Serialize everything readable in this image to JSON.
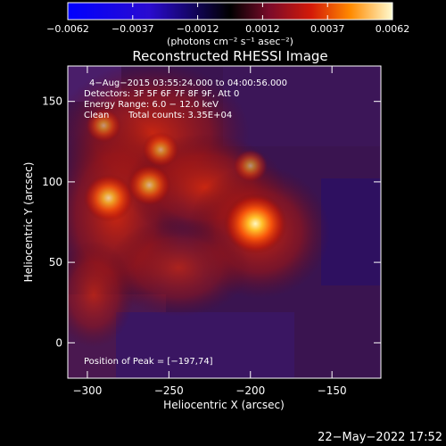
{
  "chart_data": {
    "type": "heatmap",
    "title": "Reconstructed RHESSI Image",
    "xlabel": "Heliocentric X (arcsec)",
    "ylabel": "Heliocentric Y (arcsec)",
    "xlim": [
      -312,
      -120
    ],
    "ylim": [
      -22,
      172
    ],
    "x_ticks": [
      {
        "value": -300,
        "label": "−300"
      },
      {
        "value": -250,
        "label": "−250"
      },
      {
        "value": -200,
        "label": "−200"
      },
      {
        "value": -150,
        "label": "−150"
      }
    ],
    "y_ticks": [
      {
        "value": 0,
        "label": "0"
      },
      {
        "value": 50,
        "label": "50"
      },
      {
        "value": 100,
        "label": "100"
      },
      {
        "value": 150,
        "label": "150"
      }
    ],
    "annotations": [
      "4−Aug−2015 03:55:24.000 to 04:00:56.000",
      "Detectors: 3F 5F 6F 7F 8F 9F, Att 0",
      "Energy Range: 6.0 − 12.0 keV",
      "Clean",
      "Total counts: 3.35E+04",
      "Position of Peak = [−197,74]"
    ],
    "colorbar": {
      "range": [
        -0.0062,
        0.0062
      ],
      "tick_labels": [
        "−0.0062",
        "−0.0037",
        "−0.0012",
        "0.0012",
        "0.0037",
        "0.0062"
      ],
      "unit_label": "(photons cm⁻² s⁻¹ asec⁻²)"
    },
    "sources": [
      {
        "x": -197,
        "y": 74,
        "value": 0.0062
      },
      {
        "x": -287,
        "y": 90,
        "value": 0.0042
      },
      {
        "x": -262,
        "y": 98,
        "value": 0.0032
      },
      {
        "x": -255,
        "y": 120,
        "value": 0.0022
      },
      {
        "x": -200,
        "y": 110,
        "value": 0.0018
      },
      {
        "x": -290,
        "y": 135,
        "value": 0.002
      }
    ]
  },
  "footer": {
    "timestamp": "22−May−2022 17:52"
  }
}
